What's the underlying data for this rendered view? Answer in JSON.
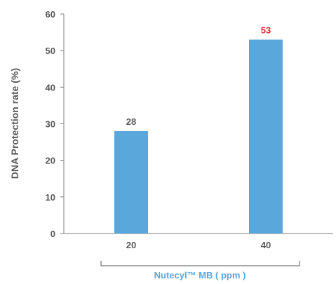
{
  "chart_data": {
    "type": "bar",
    "categories": [
      "20",
      "40"
    ],
    "values": [
      28,
      53
    ],
    "value_labels": [
      "28",
      "53"
    ],
    "ylabel": "DNA Protection rate (%)",
    "xlabel": "Nutecyl™ MB ( ppm )",
    "ylim": [
      0,
      60
    ],
    "yticks": [
      "0",
      "10",
      "20",
      "30",
      "40",
      "50",
      "60"
    ],
    "grid": false,
    "legend": "none",
    "colors": {
      "bar": "#5aa7dc",
      "axis": "#7f7f7f",
      "text": "#595959",
      "xlabel": "#5aa7dc",
      "value_labels": [
        "#595959",
        "#e0262a"
      ]
    }
  }
}
